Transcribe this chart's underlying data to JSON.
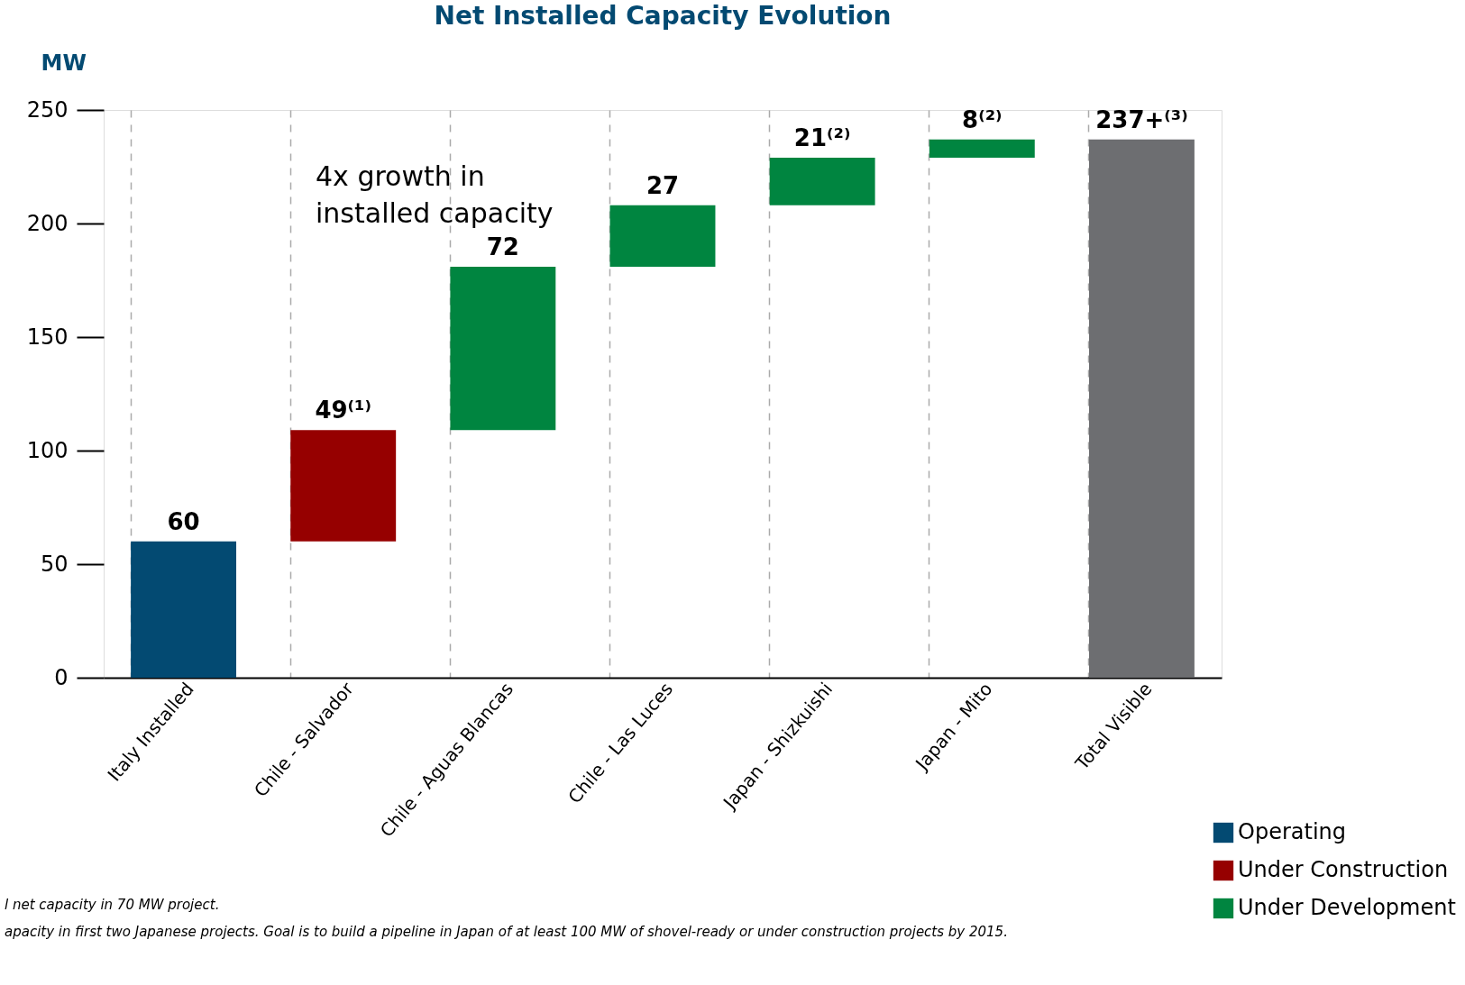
{
  "chart_data": {
    "type": "bar",
    "title": "Net Installed Capacity Evolution",
    "ylabel": "MW",
    "categories": [
      "Italy Installed",
      "Chile - Salvador",
      "Chile - Aguas Blancas",
      "Chile - Las Luces",
      "Japan - Shizkuishi",
      "Japan - Mito",
      "Total Visible"
    ],
    "series": [
      {
        "name": "Operating",
        "color": "#034a72",
        "base": [
          0,
          null,
          null,
          null,
          null,
          null,
          null
        ],
        "values": [
          60,
          null,
          null,
          null,
          null,
          null,
          null
        ],
        "value_labels": [
          "60",
          null,
          null,
          null,
          null,
          null,
          null
        ]
      },
      {
        "name": "Under Construction",
        "color": "#960000",
        "base": [
          null,
          60,
          null,
          null,
          null,
          null,
          null
        ],
        "values": [
          null,
          49,
          null,
          null,
          null,
          null,
          null
        ],
        "value_labels": [
          null,
          "49⁽¹⁾",
          null,
          null,
          null,
          null,
          null
        ]
      },
      {
        "name": "Under Development",
        "color": "#008540",
        "base": [
          null,
          null,
          109,
          181,
          208,
          229,
          null
        ],
        "values": [
          null,
          null,
          72,
          27,
          21,
          8,
          null
        ],
        "value_labels": [
          null,
          null,
          "72",
          "27",
          "21⁽²⁾",
          "8⁽²⁾",
          null
        ]
      },
      {
        "color": "#6d6e71",
        "base": [
          null,
          null,
          null,
          null,
          null,
          null,
          0
        ],
        "values": [
          null,
          null,
          null,
          null,
          null,
          null,
          237
        ],
        "value_labels": [
          null,
          null,
          null,
          null,
          null,
          null,
          "237+⁽³⁾"
        ]
      }
    ],
    "ylim": [
      0,
      250
    ],
    "yticks": [
      0,
      50,
      100,
      150,
      200,
      250
    ],
    "grid": "x",
    "legend": "bottom right",
    "annotations": [
      "4x growth in\ninstalled capacity",
      "l net capacity in 70 MW project.",
      "apacity in first two Japanese projects. Goal is to build a pipeline in Japan of at least 100 MW of shovel-ready or under construction projects by 2015."
    ]
  }
}
